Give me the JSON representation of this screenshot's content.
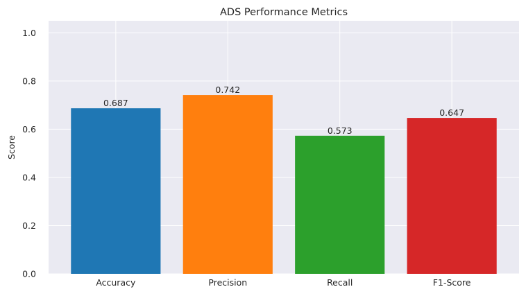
{
  "chart_data": {
    "type": "bar",
    "title": "ADS Performance Metrics",
    "xlabel": "",
    "ylabel": "Score",
    "categories": [
      "Accuracy",
      "Precision",
      "Recall",
      "F1-Score"
    ],
    "values": [
      0.687,
      0.742,
      0.573,
      0.647
    ],
    "value_labels": [
      "0.687",
      "0.742",
      "0.573",
      "0.647"
    ],
    "colors": [
      "#1f77b4",
      "#ff7f0e",
      "#2ca02c",
      "#d62728"
    ],
    "ylim": [
      0,
      1.05
    ],
    "yticks": [
      0.0,
      0.2,
      0.4,
      0.6,
      0.8,
      1.0
    ],
    "ytick_labels": [
      "0.0",
      "0.2",
      "0.4",
      "0.6",
      "0.8",
      "1.0"
    ],
    "grid": true,
    "background": "#eaeaf2",
    "grid_color": "#ffffff"
  }
}
